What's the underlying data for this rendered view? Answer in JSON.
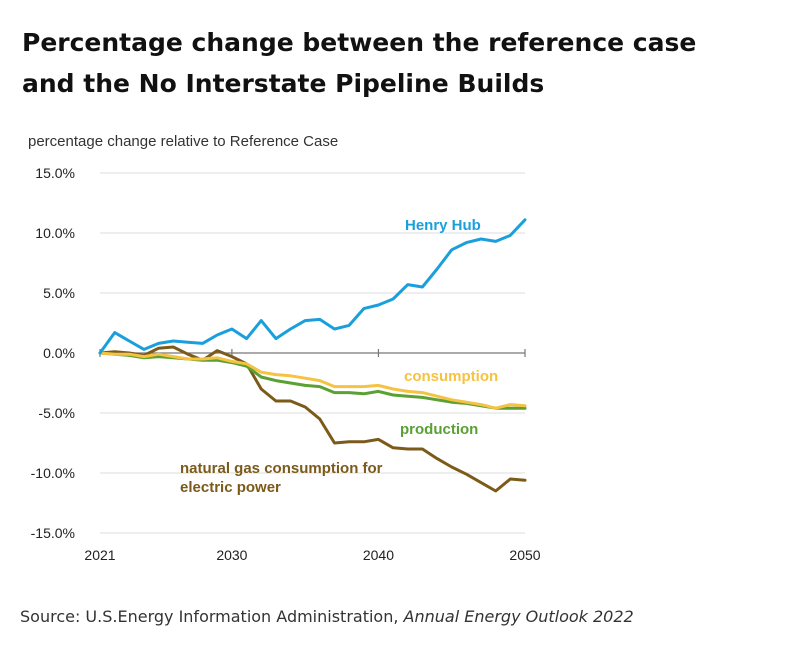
{
  "title_line1": "Percentage change between the reference case",
  "title_line2": "and the No Interstate Pipeline Builds",
  "source_prefix": "Source: U.S.Energy Information Administration, ",
  "source_italic": "Annual Energy Outlook 2022",
  "chart_data": {
    "type": "line",
    "ylabel": "percentage change relative to Reference Case",
    "xlabel": "",
    "xlim": [
      2021,
      2050
    ],
    "ylim": [
      -15,
      15
    ],
    "x_ticks": [
      "2021",
      "2030",
      "2040",
      "2050"
    ],
    "x_tick_values": [
      2021,
      2030,
      2040,
      2050
    ],
    "y_ticks": [
      "15.0%",
      "10.0%",
      "5.0%",
      "0.0%",
      "-5.0%",
      "-10.0%",
      "-15.0%"
    ],
    "y_tick_values": [
      15,
      10,
      5,
      0,
      -5,
      -10,
      -15
    ],
    "grid": "horizontal",
    "x": [
      2021,
      2022,
      2023,
      2024,
      2025,
      2026,
      2027,
      2028,
      2029,
      2030,
      2031,
      2032,
      2033,
      2034,
      2035,
      2036,
      2037,
      2038,
      2039,
      2040,
      2041,
      2042,
      2043,
      2044,
      2045,
      2046,
      2047,
      2048,
      2049,
      2050
    ],
    "series": [
      {
        "name": "Henry Hub",
        "color": "#1a9fdc",
        "values": [
          0.0,
          1.7,
          1.0,
          0.3,
          0.8,
          1.0,
          0.9,
          0.8,
          1.5,
          2.0,
          1.2,
          2.7,
          1.2,
          2.0,
          2.7,
          2.8,
          2.0,
          2.3,
          3.7,
          4.0,
          4.5,
          5.7,
          5.5,
          7.0,
          8.6,
          9.2,
          9.5,
          9.3,
          9.8,
          11.1
        ]
      },
      {
        "name": "consumption",
        "color": "#f5c242",
        "values": [
          0.0,
          -0.1,
          -0.1,
          -0.3,
          -0.1,
          -0.3,
          -0.5,
          -0.5,
          -0.4,
          -0.7,
          -0.9,
          -1.6,
          -1.8,
          -1.9,
          -2.1,
          -2.3,
          -2.8,
          -2.8,
          -2.8,
          -2.7,
          -3.0,
          -3.2,
          -3.3,
          -3.6,
          -3.9,
          -4.1,
          -4.3,
          -4.6,
          -4.3,
          -4.4
        ]
      },
      {
        "name": "production",
        "color": "#5aa033",
        "values": [
          0.0,
          -0.1,
          -0.2,
          -0.4,
          -0.3,
          -0.4,
          -0.5,
          -0.6,
          -0.6,
          -0.8,
          -1.1,
          -2.0,
          -2.3,
          -2.5,
          -2.7,
          -2.8,
          -3.3,
          -3.3,
          -3.4,
          -3.2,
          -3.5,
          -3.6,
          -3.7,
          -3.9,
          -4.1,
          -4.2,
          -4.4,
          -4.6,
          -4.6,
          -4.6
        ]
      },
      {
        "name": "natural gas consumption for electric power",
        "label_lines": [
          "natural gas consumption for",
          "electric power"
        ],
        "color": "#7b5a1a",
        "values": [
          0.0,
          0.1,
          0.0,
          -0.2,
          0.4,
          0.5,
          -0.1,
          -0.6,
          0.2,
          -0.3,
          -0.9,
          -3.0,
          -4.0,
          -4.0,
          -4.5,
          -5.5,
          -7.5,
          -7.4,
          -7.4,
          -7.2,
          -7.9,
          -8.0,
          -8.0,
          -8.8,
          -9.5,
          -10.1,
          -10.8,
          -11.5,
          -10.5,
          -10.6
        ]
      }
    ]
  }
}
